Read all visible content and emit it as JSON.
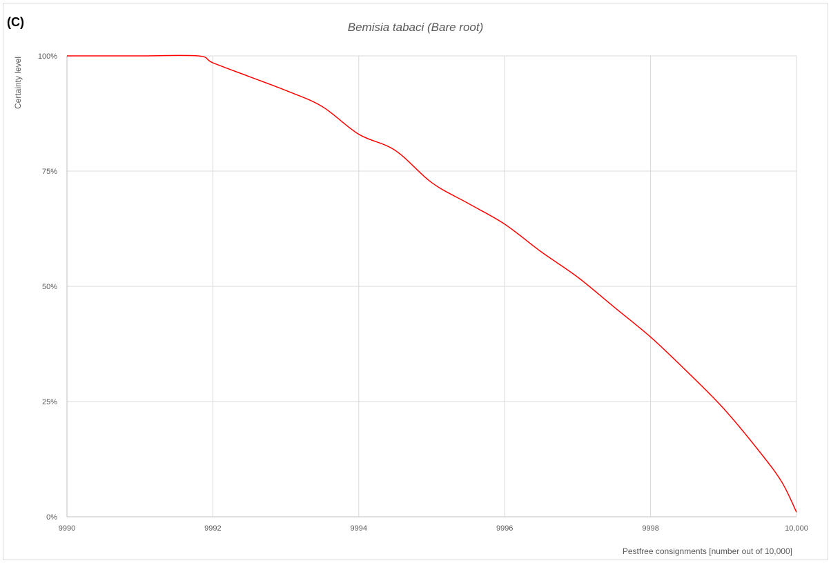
{
  "panel_label": "(C)",
  "chart_data": {
    "type": "line",
    "title": "Bemisia tabaci (Bare root)",
    "xlabel": "Pestfree consignments [number out of 10,000]",
    "ylabel": "Certainty level",
    "xlim": [
      9990,
      10000
    ],
    "ylim": [
      0,
      1
    ],
    "x_ticks": [
      9990,
      9992,
      9994,
      9996,
      9998,
      10000
    ],
    "x_tick_labels": [
      "9990",
      "9992",
      "9994",
      "9996",
      "9998",
      "10,000"
    ],
    "y_ticks": [
      0,
      0.25,
      0.5,
      0.75,
      1
    ],
    "y_tick_labels": [
      "0%",
      "25%",
      "50%",
      "75%",
      "100%"
    ],
    "grid": true,
    "series": [
      {
        "color": "#ff0000",
        "x": [
          9990,
          9991,
          9991.8,
          9992,
          9992.5,
          9993,
          9993.5,
          9994,
          9994.5,
          9995,
          9995.5,
          9996,
          9996.5,
          9997,
          9997.5,
          9998,
          9998.5,
          9999,
          9999.5,
          9999.8,
          10000
        ],
        "y": [
          1.0,
          1.0,
          1.0,
          0.985,
          0.955,
          0.925,
          0.89,
          0.83,
          0.795,
          0.725,
          0.68,
          0.635,
          0.575,
          0.52,
          0.455,
          0.39,
          0.315,
          0.235,
          0.14,
          0.075,
          0.01
        ]
      }
    ]
  }
}
